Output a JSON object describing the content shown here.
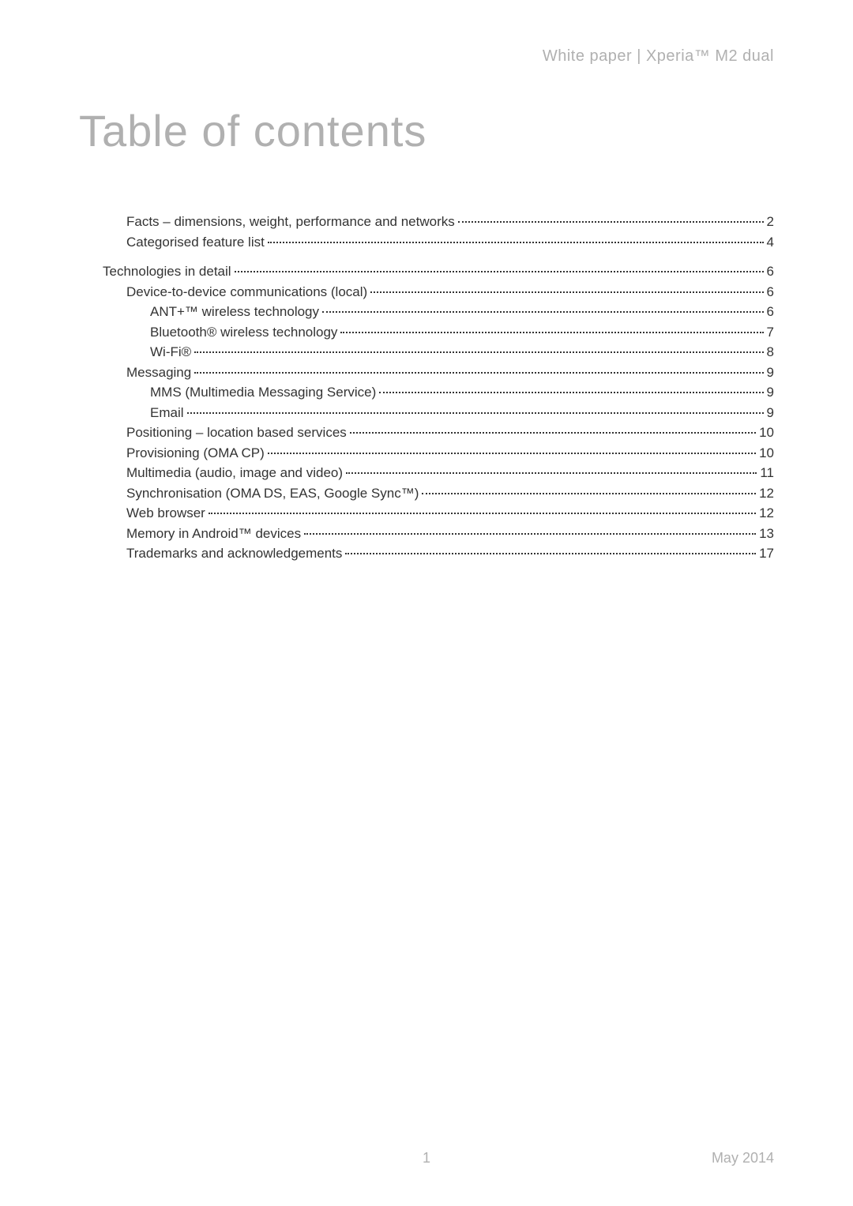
{
  "header": {
    "text": "White paper | Xperia™ M2 dual"
  },
  "title": "Table of contents",
  "toc": {
    "entries": [
      {
        "label": "Facts – dimensions, weight, performance and networks",
        "page": "2",
        "level": 1
      },
      {
        "label": "Categorised feature list",
        "page": "4",
        "level": 1
      },
      {
        "label": "_gap",
        "page": "",
        "level": 0
      },
      {
        "label": "Technologies in detail",
        "page": "6",
        "level": 0
      },
      {
        "label": "Device-to-device communications (local)",
        "page": "6",
        "level": 1
      },
      {
        "label": "ANT+™ wireless technology",
        "page": "6",
        "level": 2
      },
      {
        "label": "Bluetooth® wireless technology",
        "page": "7",
        "level": 2
      },
      {
        "label": "Wi-Fi®",
        "page": "8",
        "level": 2
      },
      {
        "label": "Messaging",
        "page": "9",
        "level": 1
      },
      {
        "label": "MMS (Multimedia Messaging Service)",
        "page": "9",
        "level": 2
      },
      {
        "label": "Email",
        "page": "9",
        "level": 2
      },
      {
        "label": "Positioning – location based services",
        "page": "10",
        "level": 1
      },
      {
        "label": "Provisioning (OMA CP)",
        "page": "10",
        "level": 1
      },
      {
        "label": "Multimedia (audio, image and video)",
        "page": "11",
        "level": 1
      },
      {
        "label": "Synchronisation (OMA DS, EAS, Google Sync™)",
        "page": "12",
        "level": 1
      },
      {
        "label": "Web browser",
        "page": "12",
        "level": 1
      },
      {
        "label": "Memory in Android™ devices",
        "page": "13",
        "level": 1
      },
      {
        "label": "Trademarks and acknowledgements",
        "page": "17",
        "level": 1
      }
    ]
  },
  "footer": {
    "page_number": "1",
    "date": "May 2014"
  },
  "colors": {
    "heading_gray": "#b0b0b0",
    "text_black": "#333333",
    "background": "#ffffff"
  }
}
